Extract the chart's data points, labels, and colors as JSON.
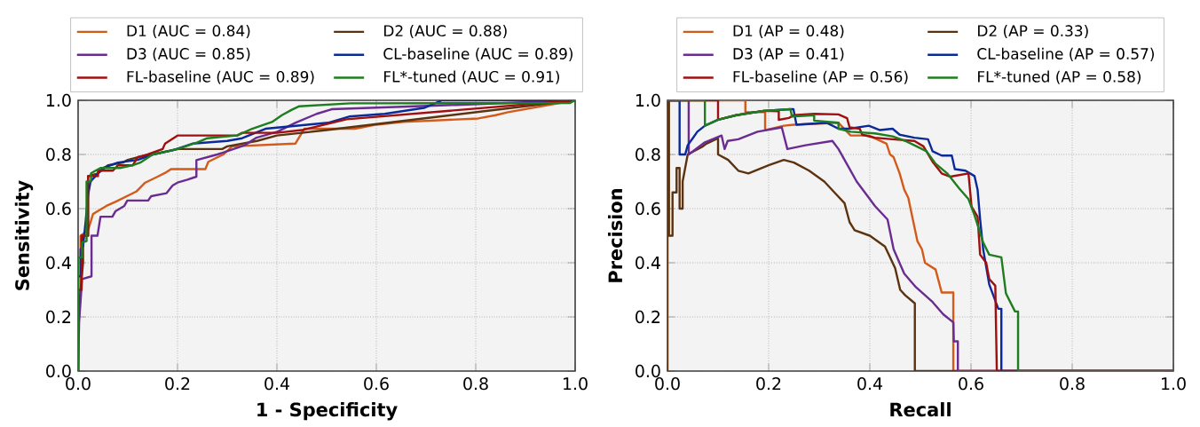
{
  "chart_data": [
    {
      "type": "line",
      "xlabel": "1 - Specificity",
      "ylabel": "Sensitivity",
      "xlim": [
        0,
        1
      ],
      "ylim": [
        0,
        1
      ],
      "grid": true,
      "legend": "top",
      "marker": "none",
      "line_style": "solid",
      "xticks": [
        {
          "value": 0,
          "label": "0.0"
        },
        {
          "value": 0.2,
          "label": "0.2"
        },
        {
          "value": 0.4,
          "label": "0.4"
        },
        {
          "value": 0.6,
          "label": "0.6"
        },
        {
          "value": 0.8,
          "label": "0.8"
        },
        {
          "value": 1,
          "label": "1.0"
        }
      ],
      "yticks": [
        {
          "value": 0,
          "label": "0.0"
        },
        {
          "value": 0.2,
          "label": "0.2"
        },
        {
          "value": 0.4,
          "label": "0.4"
        },
        {
          "value": 0.6,
          "label": "0.6"
        },
        {
          "value": 0.8,
          "label": "0.8"
        },
        {
          "value": 1,
          "label": "1.0"
        }
      ],
      "series": [
        {
          "name": "D1 (AUC = 0.84)",
          "color": "#d45a1a",
          "x": [
            0,
            0,
            0.005,
            0.005,
            0.02,
            0.03,
            0.039,
            0.057,
            0.075,
            0.117,
            0.135,
            0.16,
            0.178,
            0.187,
            0.256,
            0.262,
            0.292,
            0.31,
            0.437,
            0.455,
            0.557,
            0.6,
            0.654,
            0.805,
            0.84,
            0.865,
            1
          ],
          "values": [
            0,
            0.27,
            0.27,
            0.5,
            0.52,
            0.58,
            0.59,
            0.61,
            0.625,
            0.663,
            0.696,
            0.718,
            0.735,
            0.746,
            0.746,
            0.773,
            0.8,
            0.83,
            0.84,
            0.895,
            0.895,
            0.91,
            0.92,
            0.933,
            0.945,
            0.956,
            1
          ]
        },
        {
          "name": "D2 (AUC = 0.88)",
          "color": "#5c3310",
          "x": [
            0,
            0,
            0.01,
            0.01,
            0.02,
            0.02,
            0.04,
            0.06,
            0.09,
            0.1,
            0.12,
            0.15,
            0.2,
            0.29,
            0.3,
            0.36,
            0.4,
            0.45,
            0.5,
            1
          ],
          "values": [
            0,
            0.2,
            0.4,
            0.5,
            0.5,
            0.72,
            0.73,
            0.76,
            0.77,
            0.78,
            0.79,
            0.8,
            0.82,
            0.82,
            0.83,
            0.85,
            0.87,
            0.88,
            0.89,
            1
          ]
        },
        {
          "name": "D3 (AUC = 0.85)",
          "color": "#6a2c91",
          "x": [
            0,
            0.002,
            0.008,
            0.027,
            0.027,
            0.039,
            0.045,
            0.069,
            0.075,
            0.093,
            0.099,
            0.141,
            0.147,
            0.178,
            0.19,
            0.2,
            0.22,
            0.238,
            0.238,
            0.28,
            0.292,
            0.335,
            0.359,
            0.401,
            0.437,
            0.48,
            0.51,
            0.76,
            1
          ],
          "values": [
            0,
            0.18,
            0.34,
            0.35,
            0.5,
            0.5,
            0.57,
            0.57,
            0.59,
            0.61,
            0.63,
            0.63,
            0.646,
            0.657,
            0.685,
            0.696,
            0.707,
            0.718,
            0.779,
            0.8,
            0.807,
            0.834,
            0.862,
            0.884,
            0.917,
            0.95,
            0.967,
            0.983,
            1
          ]
        },
        {
          "name": "CL-baseline (AUC = 0.89)",
          "color": "#0a2a9a",
          "x": [
            0,
            0,
            0.005,
            0.005,
            0.01,
            0.015,
            0.02,
            0.025,
            0.035,
            0.05,
            0.08,
            0.12,
            0.15,
            0.19,
            0.23,
            0.3,
            0.33,
            0.377,
            0.503,
            0.545,
            0.617,
            0.696,
            0.732,
            1
          ],
          "values": [
            0,
            0.35,
            0.35,
            0.45,
            0.46,
            0.55,
            0.65,
            0.7,
            0.72,
            0.75,
            0.77,
            0.78,
            0.8,
            0.815,
            0.84,
            0.85,
            0.86,
            0.895,
            0.917,
            0.94,
            0.95,
            0.972,
            1,
            1
          ]
        },
        {
          "name": "FL-baseline (AUC = 0.89)",
          "color": "#a00f0f",
          "x": [
            0,
            0,
            0.007,
            0.007,
            0.02,
            0.02,
            0.04,
            0.04,
            0.07,
            0.08,
            0.11,
            0.12,
            0.14,
            0.17,
            0.175,
            0.2,
            0.32,
            0.33,
            0.4,
            0.45,
            0.54,
            1
          ],
          "values": [
            0,
            0.3,
            0.3,
            0.5,
            0.5,
            0.72,
            0.72,
            0.74,
            0.74,
            0.76,
            0.76,
            0.79,
            0.8,
            0.82,
            0.84,
            0.87,
            0.87,
            0.88,
            0.88,
            0.89,
            0.93,
            1
          ]
        },
        {
          "name": "FL*-tuned (AUC = 0.91)",
          "color": "#1e7d1e",
          "x": [
            0,
            0,
            0.008,
            0.008,
            0.017,
            0.017,
            0.026,
            0.026,
            0.035,
            0.045,
            0.084,
            0.11,
            0.125,
            0.15,
            0.2,
            0.24,
            0.26,
            0.32,
            0.35,
            0.39,
            0.41,
            0.43,
            0.445,
            0.548,
            0.99,
            1
          ],
          "values": [
            0,
            0.42,
            0.42,
            0.475,
            0.48,
            0.7,
            0.7,
            0.73,
            0.74,
            0.75,
            0.75,
            0.76,
            0.77,
            0.8,
            0.82,
            0.845,
            0.86,
            0.87,
            0.895,
            0.92,
            0.945,
            0.965,
            0.978,
            0.989,
            0.99,
            1
          ]
        }
      ]
    },
    {
      "type": "line",
      "xlabel": "Recall",
      "ylabel": "Precision",
      "xlim": [
        0,
        1
      ],
      "ylim": [
        0,
        1
      ],
      "grid": true,
      "legend": "top",
      "marker": "none",
      "line_style": "solid",
      "xticks": [
        {
          "value": 0,
          "label": "0.0"
        },
        {
          "value": 0.2,
          "label": "0.2"
        },
        {
          "value": 0.4,
          "label": "0.4"
        },
        {
          "value": 0.6,
          "label": "0.6"
        },
        {
          "value": 0.8,
          "label": "0.8"
        },
        {
          "value": 1,
          "label": "1.0"
        }
      ],
      "yticks": [
        {
          "value": 0,
          "label": "0.0"
        },
        {
          "value": 0.2,
          "label": "0.2"
        },
        {
          "value": 0.4,
          "label": "0.4"
        },
        {
          "value": 0.6,
          "label": "0.6"
        },
        {
          "value": 0.8,
          "label": "0.8"
        },
        {
          "value": 1,
          "label": "1.0"
        }
      ],
      "series": [
        {
          "name": "D1 (AP = 0.48)",
          "color": "#d45a1a",
          "x": [
            0,
            0.154,
            0.154,
            0.193,
            0.193,
            0.23,
            0.25,
            0.338,
            0.362,
            0.398,
            0.433,
            0.44,
            0.447,
            0.459,
            0.468,
            0.476,
            0.485,
            0.494,
            0.503,
            0.509,
            0.53,
            0.542,
            0.565,
            0.565,
            1
          ],
          "values": [
            1,
            1,
            0.956,
            0.956,
            0.89,
            0.906,
            0.91,
            0.917,
            0.87,
            0.87,
            0.84,
            0.8,
            0.79,
            0.73,
            0.67,
            0.64,
            0.56,
            0.48,
            0.45,
            0.4,
            0.375,
            0.29,
            0.29,
            0,
            0
          ]
        },
        {
          "name": "D2 (AP = 0.33)",
          "color": "#5c3310",
          "x": [
            0,
            0,
            0.003,
            0.003,
            0.01,
            0.01,
            0.018,
            0.018,
            0.024,
            0.024,
            0.03,
            0.03,
            0.04,
            0.07,
            0.077,
            0.1,
            0.1,
            0.12,
            0.14,
            0.16,
            0.2,
            0.23,
            0.25,
            0.28,
            0.31,
            0.33,
            0.35,
            0.36,
            0.37,
            0.4,
            0.43,
            0.45,
            0.46,
            0.47,
            0.489,
            0.489,
            1
          ],
          "values": [
            0,
            1,
            1,
            0.5,
            0.5,
            0.66,
            0.66,
            0.75,
            0.75,
            0.6,
            0.6,
            0.7,
            0.8,
            0.83,
            0.84,
            0.86,
            0.8,
            0.78,
            0.74,
            0.73,
            0.76,
            0.78,
            0.77,
            0.74,
            0.7,
            0.66,
            0.62,
            0.55,
            0.52,
            0.5,
            0.46,
            0.38,
            0.3,
            0.28,
            0.25,
            0,
            0
          ]
        },
        {
          "name": "D3 (AP = 0.41)",
          "color": "#6a2c91",
          "x": [
            0,
            0.042,
            0.042,
            0.074,
            0.107,
            0.113,
            0.119,
            0.14,
            0.178,
            0.226,
            0.237,
            0.273,
            0.326,
            0.338,
            0.356,
            0.374,
            0.398,
            0.41,
            0.435,
            0.447,
            0.468,
            0.491,
            0.524,
            0.545,
            0.565,
            0.566,
            0.574,
            0.574,
            1
          ],
          "values": [
            1,
            1,
            0.8,
            0.845,
            0.87,
            0.82,
            0.85,
            0.856,
            0.884,
            0.9,
            0.82,
            0.834,
            0.85,
            0.82,
            0.76,
            0.7,
            0.64,
            0.61,
            0.56,
            0.45,
            0.36,
            0.31,
            0.255,
            0.21,
            0.18,
            0.11,
            0.11,
            0,
            0
          ]
        },
        {
          "name": "CL-baseline (AP = 0.57)",
          "color": "#0a2a9a",
          "x": [
            0,
            0.024,
            0.024,
            0.035,
            0.04,
            0.05,
            0.059,
            0.074,
            0.1,
            0.136,
            0.19,
            0.243,
            0.249,
            0.255,
            0.315,
            0.338,
            0.36,
            0.398,
            0.42,
            0.445,
            0.459,
            0.488,
            0.515,
            0.524,
            0.542,
            0.562,
            0.568,
            0.589,
            0.607,
            0.613,
            0.618,
            0.624,
            0.636,
            0.654,
            0.66,
            0.66,
            1
          ],
          "values": [
            1,
            1,
            0.8,
            0.8,
            0.834,
            0.86,
            0.884,
            0.906,
            0.928,
            0.945,
            0.961,
            0.967,
            0.967,
            0.91,
            0.917,
            0.895,
            0.895,
            0.906,
            0.89,
            0.895,
            0.873,
            0.862,
            0.856,
            0.812,
            0.796,
            0.796,
            0.746,
            0.74,
            0.72,
            0.67,
            0.56,
            0.45,
            0.32,
            0.23,
            0.23,
            0,
            0
          ]
        },
        {
          "name": "FL-baseline (AP = 0.56)",
          "color": "#a00f0f",
          "x": [
            0,
            0.1,
            0.1,
            0.136,
            0.19,
            0.22,
            0.22,
            0.24,
            0.25,
            0.29,
            0.338,
            0.355,
            0.36,
            0.38,
            0.385,
            0.41,
            0.445,
            0.488,
            0.506,
            0.524,
            0.542,
            0.559,
            0.595,
            0.601,
            0.613,
            0.618,
            0.63,
            0.636,
            0.648,
            0.651,
            1
          ],
          "values": [
            1,
            1,
            0.928,
            0.945,
            0.961,
            0.96,
            0.928,
            0.935,
            0.945,
            0.95,
            0.948,
            0.934,
            0.9,
            0.895,
            0.873,
            0.862,
            0.856,
            0.85,
            0.83,
            0.773,
            0.73,
            0.718,
            0.73,
            0.608,
            0.57,
            0.43,
            0.4,
            0.34,
            0.315,
            0,
            0
          ]
        },
        {
          "name": "FL*-tuned (AP = 0.58)",
          "color": "#1e7d1e",
          "x": [
            0,
            0.074,
            0.074,
            0.1,
            0.136,
            0.19,
            0.243,
            0.246,
            0.29,
            0.29,
            0.338,
            0.338,
            0.362,
            0.41,
            0.445,
            0.47,
            0.488,
            0.512,
            0.53,
            0.553,
            0.577,
            0.595,
            0.607,
            0.624,
            0.636,
            0.66,
            0.669,
            0.687,
            0.693,
            0.693,
            1
          ],
          "values": [
            1,
            1,
            0.906,
            0.928,
            0.945,
            0.961,
            0.967,
            0.94,
            0.945,
            0.925,
            0.917,
            0.895,
            0.884,
            0.878,
            0.867,
            0.85,
            0.834,
            0.812,
            0.766,
            0.73,
            0.674,
            0.635,
            0.575,
            0.475,
            0.43,
            0.42,
            0.287,
            0.22,
            0.22,
            0,
            0
          ]
        }
      ]
    }
  ]
}
